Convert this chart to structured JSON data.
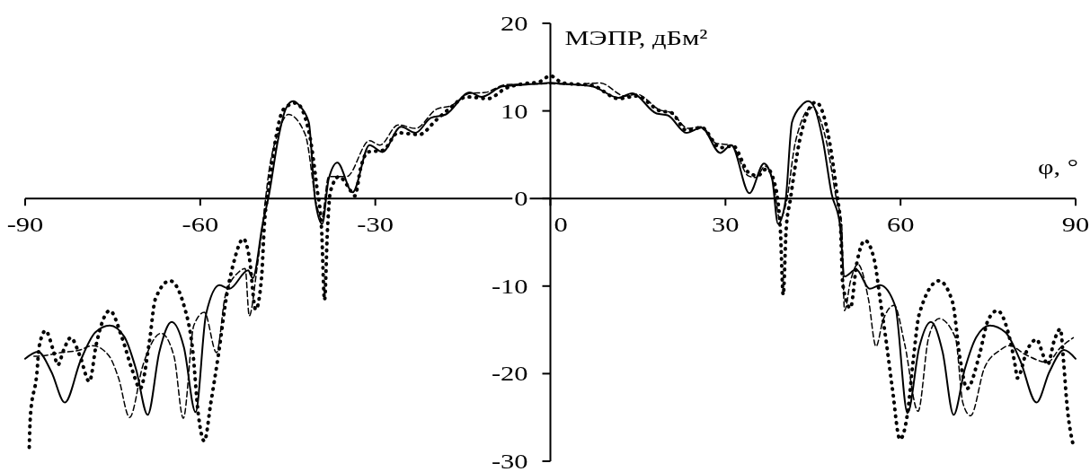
{
  "chart_data": {
    "type": "line",
    "xlabel": "φ, °",
    "ylabel": "МЭПР, дБм²",
    "xlim": [
      -90,
      90
    ],
    "xticks": [
      -90,
      -60,
      -30,
      0,
      30,
      60,
      90
    ],
    "ylim": [
      -30,
      20
    ],
    "yticks": [
      -30,
      -20,
      -10,
      0,
      10,
      20
    ],
    "series": [
      {
        "color": "#000000",
        "line_style": "solid",
        "x": [
          -90,
          -87.8,
          -85.5,
          -83.2,
          -80.5,
          -78,
          -75.5,
          -73,
          -71,
          -69,
          -67,
          -64.9,
          -62.8,
          -60.8,
          -59,
          -56.7,
          -55,
          -51.8,
          -51,
          -49.3,
          -48.2,
          -46.7,
          -45.3,
          -44.1,
          -43,
          -41.4,
          -40.3,
          -39.1,
          -38,
          -36.5,
          -33.9,
          -31,
          -28.8,
          -25.6,
          -23.1,
          -20.5,
          -17.9,
          -13.8,
          -11.8,
          -8.2,
          -2,
          0,
          2,
          7.2,
          11.7,
          14,
          18.2,
          20.1,
          23.3,
          25.9,
          29.1,
          31,
          34.1,
          36.6,
          38,
          39,
          40.3,
          41.4,
          43,
          44.2,
          45.3,
          46.7,
          48.2,
          49.6,
          50.4,
          52.4,
          54.7,
          56.5,
          59.1,
          61.2,
          63.2,
          65.2,
          67.2,
          69.1,
          71,
          73,
          75.3,
          78,
          80.5,
          83.3,
          85.5,
          88,
          90
        ],
        "values": [
          -18.3,
          -17.5,
          -19.8,
          -23.3,
          -18.5,
          -15.3,
          -14.5,
          -15.8,
          -19.5,
          -24.7,
          -17.5,
          -14.1,
          -17,
          -24.4,
          -13.2,
          -9.9,
          -10.3,
          -8.2,
          -9.1,
          -2.9,
          0.5,
          6.6,
          10.3,
          11.1,
          10.6,
          8.7,
          -0.2,
          -2.9,
          2.2,
          4.1,
          0.7,
          6.1,
          5.3,
          8.2,
          7.5,
          9.2,
          9.6,
          12.1,
          11.6,
          12.8,
          13.1,
          13.2,
          13.1,
          12.8,
          11.5,
          12,
          9.7,
          9.5,
          7.5,
          8.1,
          5.2,
          6.1,
          0.6,
          4,
          2.2,
          -2.9,
          -0.2,
          8.7,
          10.6,
          11.1,
          10.3,
          6.6,
          0.5,
          -2.9,
          -8.9,
          -8.1,
          -10.3,
          -9.9,
          -12.3,
          -24.5,
          -17,
          -14.1,
          -17.5,
          -24.7,
          -19.5,
          -15.8,
          -14.5,
          -15.3,
          -18.5,
          -23.3,
          -19.8,
          -17.3,
          -18.3
        ]
      },
      {
        "color": "#000000",
        "line_style": "dashed",
        "x": [
          -88.5,
          -87.8,
          -84,
          -80.6,
          -78.5,
          -75.7,
          -74,
          -72.1,
          -69.8,
          -66.7,
          -64.5,
          -62.9,
          -61.1,
          -59.3,
          -57.2,
          -55.7,
          -53.4,
          -52.3,
          -51.6,
          -50.3,
          -49.3,
          -48.2,
          -46.5,
          -44.9,
          -42,
          -40,
          -39.2,
          -38,
          -34.9,
          -31,
          -29.2,
          -26.1,
          -23.1,
          -19.5,
          -17,
          -13.8,
          -11.2,
          -7.6,
          0,
          4,
          8.5,
          12.8,
          14.8,
          18.8,
          20.7,
          23.6,
          25.9,
          28.4,
          31,
          33.9,
          35.2,
          36.8,
          38.3,
          39.3,
          40.4,
          42,
          44.8,
          47.3,
          49,
          49.9,
          50.4,
          51.4,
          52.7,
          54.5,
          55.8,
          57,
          58.9,
          60.7,
          63,
          64.8,
          66.6,
          69.4,
          70.7,
          72,
          74.4,
          77.1,
          78.6,
          81.6,
          85.2,
          87.3,
          89.6
        ],
        "values": [
          -18,
          -18,
          -17.6,
          -17.3,
          -16.8,
          -17.9,
          -20.5,
          -25,
          -19,
          -15.4,
          -18,
          -25.1,
          -14.5,
          -13,
          -17.6,
          -11.1,
          -8.4,
          -8,
          -13.4,
          -8.1,
          -2.9,
          3.2,
          7.8,
          9.6,
          7.3,
          -0.9,
          -2.4,
          2.5,
          2.5,
          6.6,
          6.1,
          8.4,
          8,
          10.2,
          10.6,
          12,
          12.1,
          13,
          13.1,
          13,
          13.2,
          11.7,
          11.9,
          10.1,
          9.8,
          8,
          8.2,
          6.3,
          6.1,
          2.6,
          2.4,
          3.7,
          1.5,
          -2.4,
          -0.5,
          6.5,
          10.4,
          6.5,
          0,
          -2.9,
          -12.8,
          -9.5,
          -7.5,
          -11.5,
          -16.9,
          -13.9,
          -12.2,
          -16.6,
          -24.3,
          -15.9,
          -13.7,
          -15.9,
          -23.4,
          -24.8,
          -19.3,
          -17.3,
          -16.8,
          -17.9,
          -18.7,
          -17.1,
          -15.9
        ]
      },
      {
        "color": "#000000",
        "line_style": "dotted",
        "x": [
          -89.3,
          -89.1,
          -88,
          -87.6,
          -86.5,
          -85.2,
          -84.4,
          -83.4,
          -82.2,
          -80.6,
          -79,
          -77.8,
          -75.5,
          -73.4,
          -71.6,
          -70.3,
          -68.7,
          -67.7,
          -65.2,
          -62.8,
          -61.3,
          -60.3,
          -59.3,
          -58.2,
          -56.9,
          -55.4,
          -54.3,
          -52.6,
          -51.6,
          -50.5,
          -49.5,
          -49,
          -48.2,
          -47.2,
          -45.7,
          -43.6,
          -41.4,
          -40,
          -39.2,
          -38.7,
          -38.2,
          -37.7,
          -36.2,
          -34.8,
          -33.5,
          -32.5,
          -31.3,
          -28.7,
          -26.1,
          -22.5,
          -19.5,
          -17.4,
          -14.3,
          -10.7,
          -7.6,
          -4.6,
          -2,
          0,
          2.1,
          7.2,
          11.7,
          14.8,
          18.8,
          20.7,
          23.3,
          25.9,
          29.1,
          31.3,
          33.9,
          35.5,
          37.1,
          38.4,
          39.4,
          39.9,
          40.4,
          41.1,
          42.7,
          45.5,
          47.8,
          49.2,
          49.7,
          50.1,
          51.4,
          52.5,
          53.9,
          55.5,
          56.5,
          57.6,
          58.6,
          59.9,
          61.2,
          62.2,
          63.2,
          66.6,
          68.9,
          70.2,
          71.4,
          73.5,
          75,
          76.6,
          78.4,
          79.7,
          80,
          81.7,
          83.3,
          84.5,
          85.2,
          86.3,
          87.4,
          87.9,
          88.5,
          89.6
        ],
        "values": [
          -28.4,
          -24.8,
          -20,
          -16.9,
          -15.1,
          -17.3,
          -19,
          -17.3,
          -15.9,
          -18,
          -20.9,
          -16.6,
          -12.8,
          -15.9,
          -19.7,
          -21.7,
          -16.3,
          -11.5,
          -9.4,
          -12.2,
          -17.3,
          -24.8,
          -27.7,
          -23.4,
          -17.9,
          -10.8,
          -7.4,
          -4.6,
          -6.7,
          -12.7,
          -9.1,
          -2.9,
          1.5,
          6.3,
          10.2,
          10.9,
          7.7,
          1.2,
          -3.6,
          -11.6,
          -3.6,
          0.8,
          2.5,
          1.5,
          0.3,
          3.5,
          5.3,
          5.5,
          7.5,
          7.3,
          9,
          10.2,
          11.6,
          11.4,
          12.6,
          13.1,
          13.3,
          14,
          13.2,
          12.9,
          11.4,
          11.7,
          10,
          9.8,
          7.8,
          8.1,
          5.8,
          6,
          3,
          2.6,
          3.4,
          1.8,
          -3.5,
          -11,
          -3.5,
          -0.2,
          6.6,
          11,
          6.6,
          0,
          -2.9,
          -9.8,
          -12.5,
          -7.4,
          -4.8,
          -7,
          -11.5,
          -16.6,
          -21.7,
          -27.5,
          -24.5,
          -18.3,
          -13.2,
          -9.4,
          -11.8,
          -18.3,
          -21.7,
          -17.9,
          -13.9,
          -12.8,
          -15.2,
          -19.3,
          -20.5,
          -17.3,
          -16.1,
          -18,
          -19,
          -16.3,
          -14.9,
          -18.3,
          -23.4,
          -28.2
        ]
      }
    ]
  }
}
